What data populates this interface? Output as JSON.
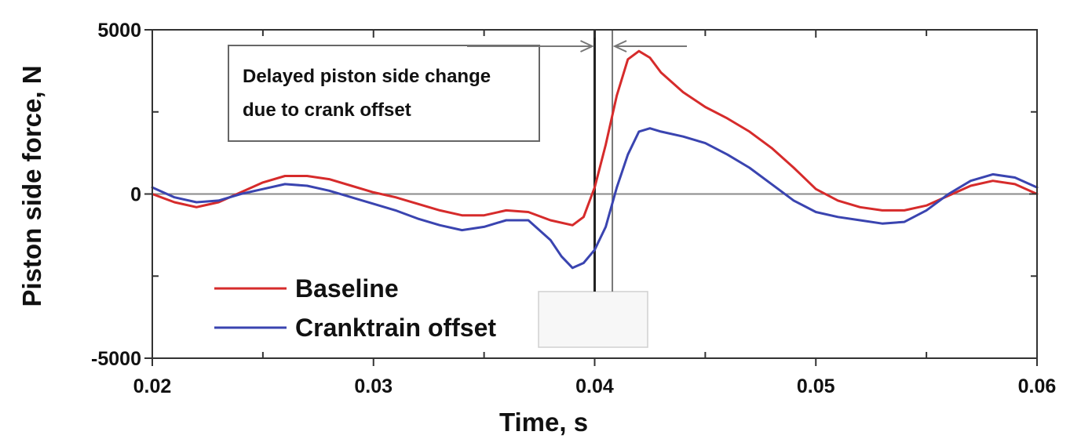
{
  "chart_data": {
    "type": "line",
    "xlabel": "Time, s",
    "ylabel": "Piston side force, N",
    "xlim": [
      0.02,
      0.06
    ],
    "ylim": [
      -5000,
      5000
    ],
    "xticks": [
      {
        "value": 0.02,
        "label": "0.02"
      },
      {
        "value": 0.03,
        "label": "0.03"
      },
      {
        "value": 0.04,
        "label": "0.04"
      },
      {
        "value": 0.05,
        "label": "0.05"
      },
      {
        "value": 0.06,
        "label": "0.06"
      }
    ],
    "yticks": [
      {
        "value": 5000,
        "label": "5000"
      },
      {
        "value": 0,
        "label": "0"
      },
      {
        "value": -5000,
        "label": "-5000"
      }
    ],
    "annotation": {
      "lines": [
        "Delayed piston side change",
        "due to crank offset"
      ],
      "markers_x": [
        0.04,
        0.0408
      ]
    },
    "series": [
      {
        "name": "Baseline",
        "color": "#d62b2b",
        "points": [
          [
            0.02,
            0
          ],
          [
            0.021,
            -250
          ],
          [
            0.022,
            -400
          ],
          [
            0.023,
            -250
          ],
          [
            0.024,
            50
          ],
          [
            0.025,
            350
          ],
          [
            0.026,
            550
          ],
          [
            0.027,
            550
          ],
          [
            0.028,
            450
          ],
          [
            0.029,
            250
          ],
          [
            0.03,
            50
          ],
          [
            0.031,
            -100
          ],
          [
            0.032,
            -300
          ],
          [
            0.033,
            -500
          ],
          [
            0.034,
            -650
          ],
          [
            0.035,
            -650
          ],
          [
            0.036,
            -500
          ],
          [
            0.037,
            -550
          ],
          [
            0.038,
            -800
          ],
          [
            0.039,
            -950
          ],
          [
            0.0395,
            -700
          ],
          [
            0.04,
            200
          ],
          [
            0.0405,
            1500
          ],
          [
            0.041,
            3000
          ],
          [
            0.0415,
            4100
          ],
          [
            0.042,
            4350
          ],
          [
            0.0425,
            4150
          ],
          [
            0.043,
            3700
          ],
          [
            0.044,
            3100
          ],
          [
            0.045,
            2650
          ],
          [
            0.046,
            2300
          ],
          [
            0.047,
            1900
          ],
          [
            0.048,
            1400
          ],
          [
            0.049,
            800
          ],
          [
            0.05,
            150
          ],
          [
            0.051,
            -200
          ],
          [
            0.052,
            -400
          ],
          [
            0.053,
            -500
          ],
          [
            0.054,
            -500
          ],
          [
            0.055,
            -350
          ],
          [
            0.056,
            -50
          ],
          [
            0.057,
            250
          ],
          [
            0.058,
            400
          ],
          [
            0.059,
            300
          ],
          [
            0.06,
            0
          ]
        ]
      },
      {
        "name": "Cranktrain offset",
        "color": "#3a44b0",
        "points": [
          [
            0.02,
            200
          ],
          [
            0.021,
            -100
          ],
          [
            0.022,
            -250
          ],
          [
            0.023,
            -200
          ],
          [
            0.024,
            0
          ],
          [
            0.025,
            150
          ],
          [
            0.026,
            300
          ],
          [
            0.027,
            250
          ],
          [
            0.028,
            100
          ],
          [
            0.029,
            -100
          ],
          [
            0.03,
            -300
          ],
          [
            0.031,
            -500
          ],
          [
            0.032,
            -750
          ],
          [
            0.033,
            -950
          ],
          [
            0.034,
            -1100
          ],
          [
            0.035,
            -1000
          ],
          [
            0.036,
            -800
          ],
          [
            0.037,
            -800
          ],
          [
            0.038,
            -1400
          ],
          [
            0.0385,
            -1900
          ],
          [
            0.039,
            -2250
          ],
          [
            0.0395,
            -2100
          ],
          [
            0.04,
            -1700
          ],
          [
            0.0405,
            -1000
          ],
          [
            0.041,
            200
          ],
          [
            0.0415,
            1200
          ],
          [
            0.042,
            1900
          ],
          [
            0.0425,
            2000
          ],
          [
            0.043,
            1900
          ],
          [
            0.044,
            1750
          ],
          [
            0.045,
            1550
          ],
          [
            0.046,
            1200
          ],
          [
            0.047,
            800
          ],
          [
            0.048,
            300
          ],
          [
            0.049,
            -200
          ],
          [
            0.05,
            -550
          ],
          [
            0.051,
            -700
          ],
          [
            0.052,
            -800
          ],
          [
            0.053,
            -900
          ],
          [
            0.054,
            -850
          ],
          [
            0.055,
            -500
          ],
          [
            0.056,
            0
          ],
          [
            0.057,
            400
          ],
          [
            0.058,
            600
          ],
          [
            0.059,
            500
          ],
          [
            0.06,
            200
          ]
        ]
      }
    ]
  }
}
